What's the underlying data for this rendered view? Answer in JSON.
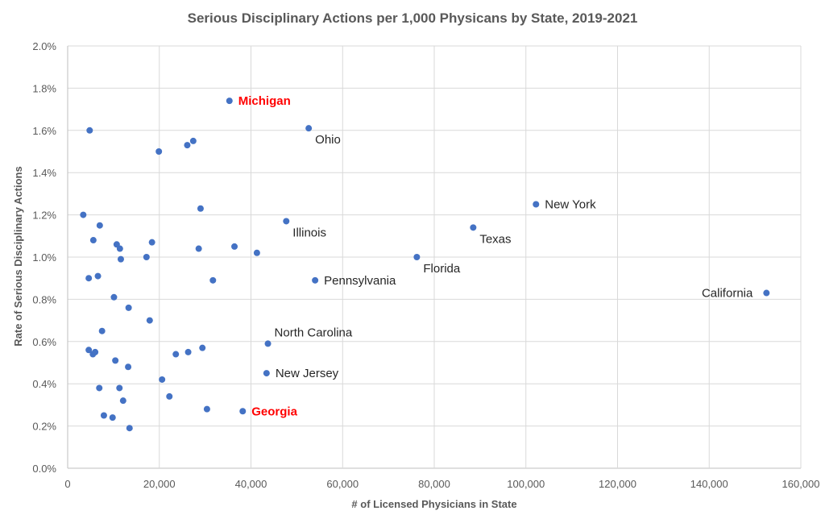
{
  "chart_data": {
    "type": "scatter",
    "title": "Serious Disciplinary Actions per 1,000 Physicans by State, 2019-2021",
    "xlabel": "# of Licensed Physicians in State",
    "ylabel": "Rate of Serious Disciplinary Actions",
    "xlim": [
      0,
      160000
    ],
    "ylim": [
      0,
      2.0
    ],
    "x_ticks": [
      0,
      20000,
      40000,
      60000,
      80000,
      100000,
      120000,
      140000,
      160000
    ],
    "x_tick_labels": [
      "0",
      "20,000",
      "40,000",
      "60,000",
      "80,000",
      "100,000",
      "120,000",
      "140,000",
      "160,000"
    ],
    "y_ticks": [
      0,
      0.2,
      0.4,
      0.6,
      0.8,
      1.0,
      1.2,
      1.4,
      1.6,
      1.8,
      2.0
    ],
    "y_tick_labels": [
      "0.0%",
      "0.2%",
      "0.4%",
      "0.6%",
      "0.8%",
      "1.0%",
      "1.2%",
      "1.4%",
      "1.6%",
      "1.8%",
      "2.0%"
    ],
    "grid": true,
    "series_color": "#4472c4",
    "highlight_color": "#ff0000",
    "points": [
      {
        "x": 35300,
        "y": 1.74,
        "label": "Michigan",
        "highlight": true,
        "label_pos": "right"
      },
      {
        "x": 52600,
        "y": 1.61,
        "label": "Ohio",
        "label_pos": "below-right"
      },
      {
        "x": 47700,
        "y": 1.17,
        "label": "Illinois",
        "label_pos": "below-right"
      },
      {
        "x": 54000,
        "y": 0.89,
        "label": "Pennsylvania",
        "label_pos": "right"
      },
      {
        "x": 76200,
        "y": 1.0,
        "label": "Florida",
        "label_pos": "below-right"
      },
      {
        "x": 88500,
        "y": 1.14,
        "label": "Texas",
        "label_pos": "below-right"
      },
      {
        "x": 102200,
        "y": 1.25,
        "label": "New York",
        "label_pos": "right"
      },
      {
        "x": 152500,
        "y": 0.83,
        "label": "California",
        "label_pos": "left"
      },
      {
        "x": 43700,
        "y": 0.59,
        "label": "North Carolina",
        "label_pos": "above-right"
      },
      {
        "x": 43400,
        "y": 0.45,
        "label": "New Jersey",
        "label_pos": "right"
      },
      {
        "x": 38200,
        "y": 0.27,
        "label": "Georgia",
        "highlight": true,
        "label_pos": "right"
      },
      {
        "x": 4800,
        "y": 1.6
      },
      {
        "x": 19900,
        "y": 1.5
      },
      {
        "x": 26100,
        "y": 1.53
      },
      {
        "x": 27400,
        "y": 1.55
      },
      {
        "x": 3400,
        "y": 1.2
      },
      {
        "x": 7000,
        "y": 1.15
      },
      {
        "x": 29000,
        "y": 1.23
      },
      {
        "x": 5600,
        "y": 1.08
      },
      {
        "x": 10700,
        "y": 1.06
      },
      {
        "x": 11400,
        "y": 1.04
      },
      {
        "x": 18400,
        "y": 1.07
      },
      {
        "x": 11600,
        "y": 0.99
      },
      {
        "x": 17200,
        "y": 1.0
      },
      {
        "x": 28600,
        "y": 1.04
      },
      {
        "x": 36400,
        "y": 1.05
      },
      {
        "x": 41300,
        "y": 1.02
      },
      {
        "x": 4600,
        "y": 0.9
      },
      {
        "x": 6600,
        "y": 0.91
      },
      {
        "x": 31700,
        "y": 0.89
      },
      {
        "x": 10100,
        "y": 0.81
      },
      {
        "x": 13300,
        "y": 0.76
      },
      {
        "x": 17900,
        "y": 0.7
      },
      {
        "x": 7500,
        "y": 0.65
      },
      {
        "x": 4600,
        "y": 0.56
      },
      {
        "x": 5500,
        "y": 0.54
      },
      {
        "x": 6000,
        "y": 0.55
      },
      {
        "x": 10400,
        "y": 0.51
      },
      {
        "x": 13200,
        "y": 0.48
      },
      {
        "x": 23600,
        "y": 0.54
      },
      {
        "x": 26300,
        "y": 0.55
      },
      {
        "x": 29400,
        "y": 0.57
      },
      {
        "x": 20600,
        "y": 0.42
      },
      {
        "x": 6900,
        "y": 0.38
      },
      {
        "x": 11300,
        "y": 0.38
      },
      {
        "x": 12100,
        "y": 0.32
      },
      {
        "x": 22200,
        "y": 0.34
      },
      {
        "x": 30400,
        "y": 0.28
      },
      {
        "x": 7900,
        "y": 0.25
      },
      {
        "x": 9800,
        "y": 0.24
      },
      {
        "x": 13500,
        "y": 0.19
      }
    ]
  }
}
